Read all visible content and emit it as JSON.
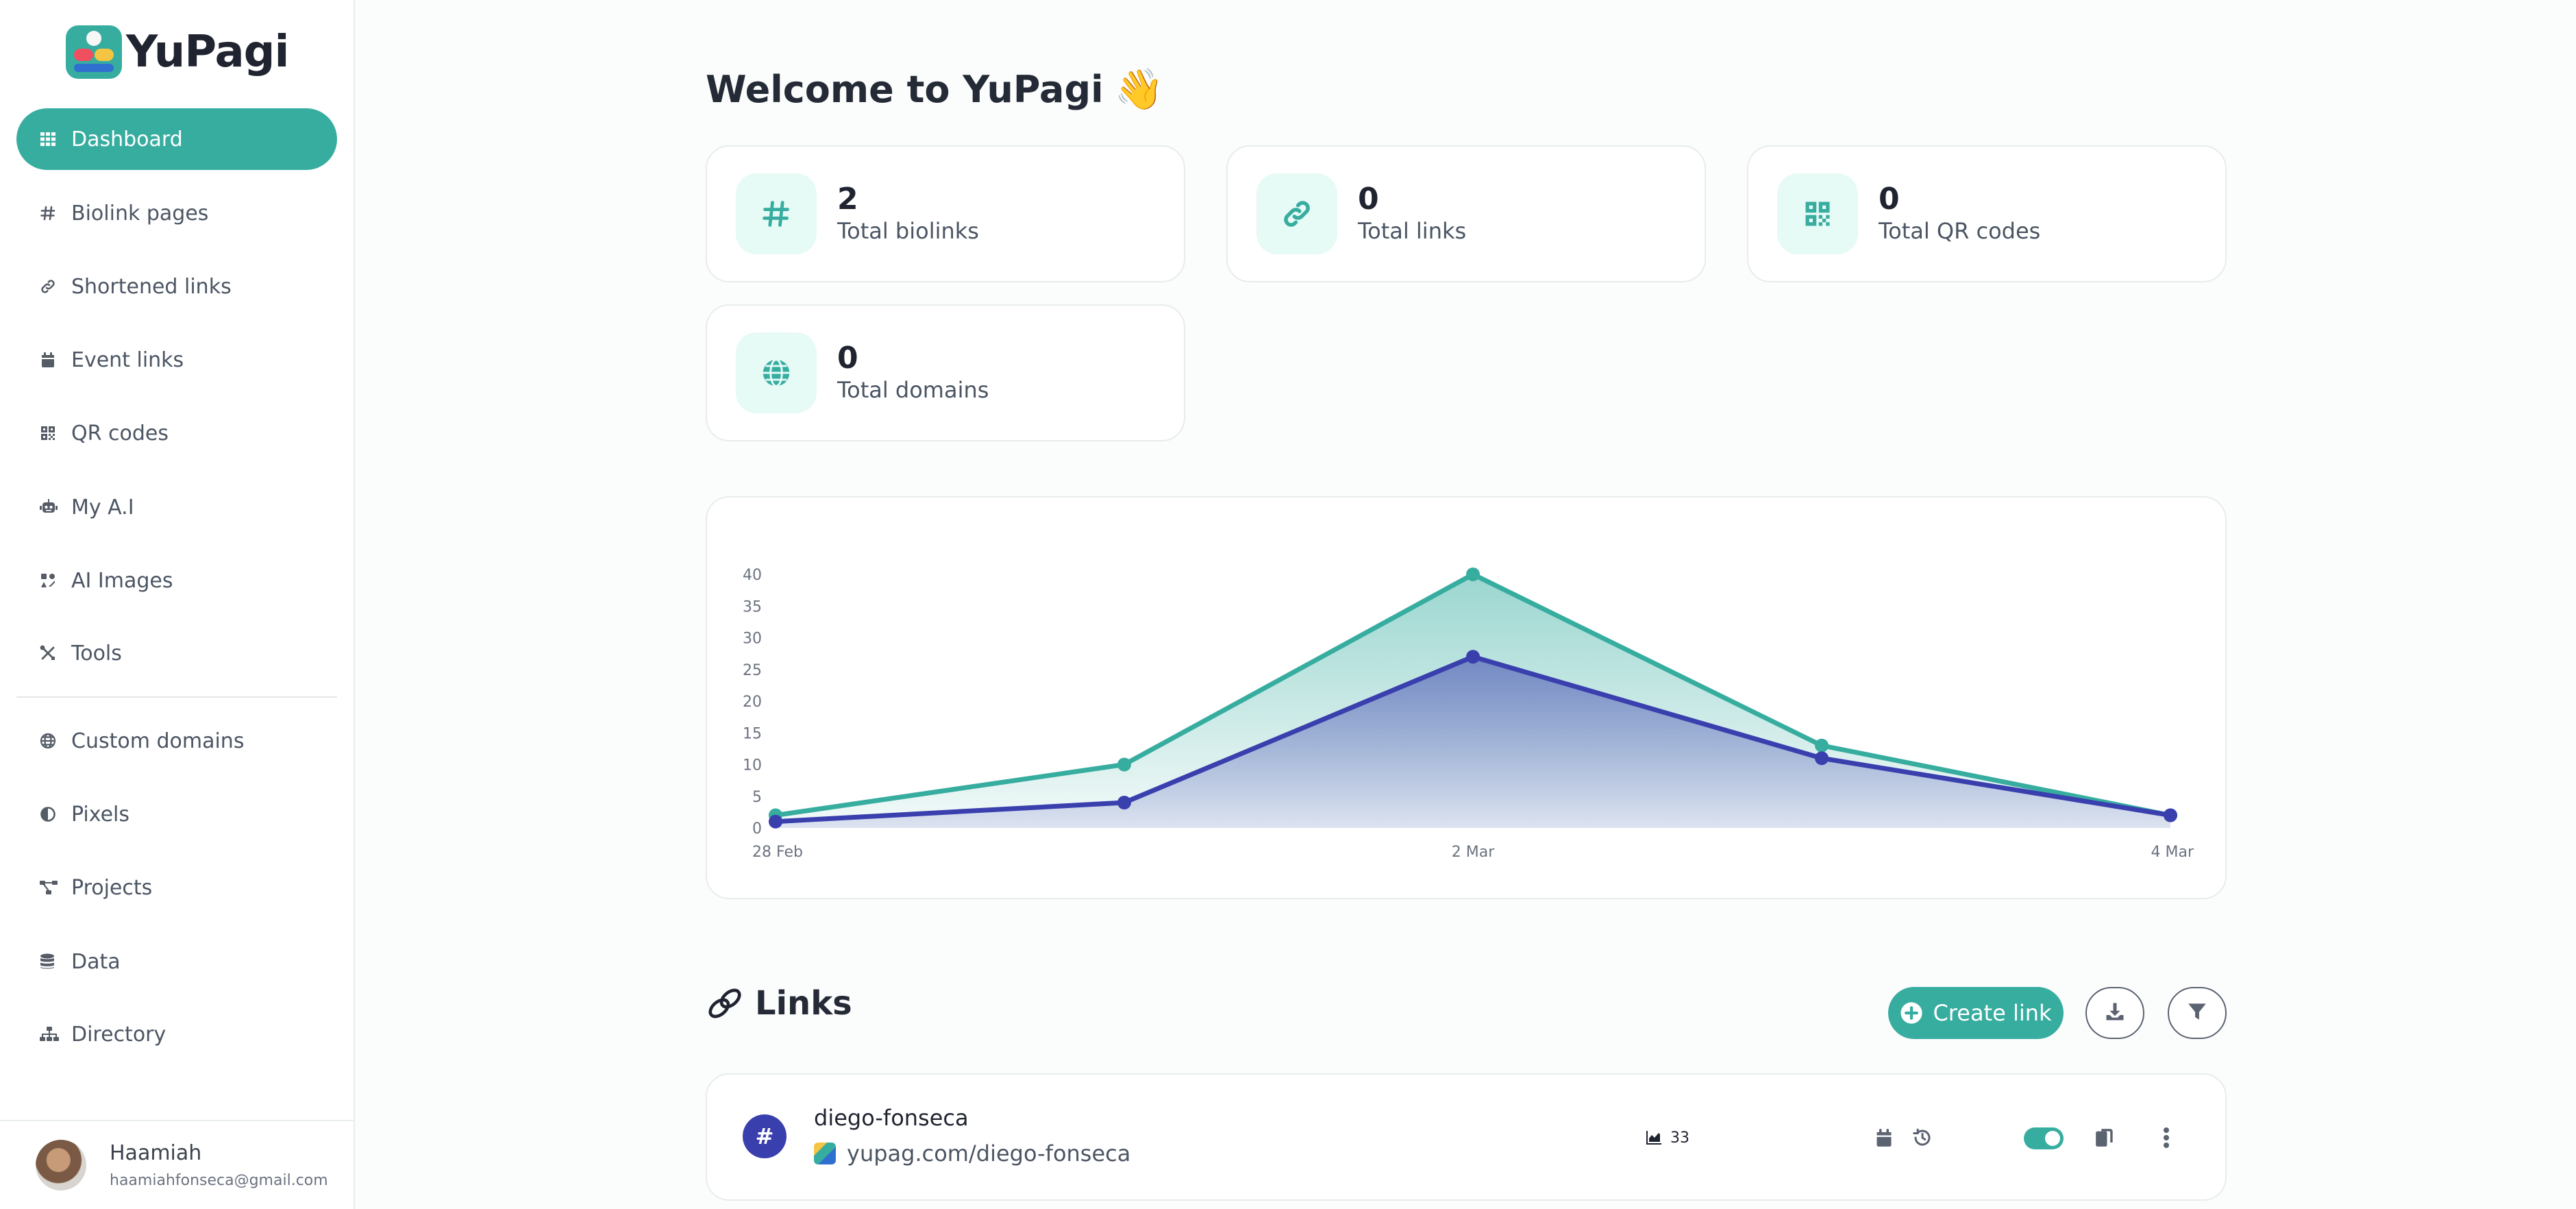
{
  "brand": {
    "name": "YuPagi"
  },
  "sidebar": {
    "items": [
      {
        "label": "Dashboard",
        "icon": "grid-icon",
        "active": true
      },
      {
        "label": "Biolink pages",
        "icon": "hash-icon"
      },
      {
        "label": "Shortened links",
        "icon": "link-icon"
      },
      {
        "label": "Event links",
        "icon": "calendar-icon"
      },
      {
        "label": "QR codes",
        "icon": "qrcode-icon"
      },
      {
        "label": "My A.I",
        "icon": "robot-icon"
      },
      {
        "label": "AI Images",
        "icon": "ai-images-icon"
      },
      {
        "label": "Tools",
        "icon": "tools-icon"
      },
      {
        "label": "Custom domains",
        "icon": "globe-icon"
      },
      {
        "label": "Pixels",
        "icon": "adjust-icon"
      },
      {
        "label": "Projects",
        "icon": "project-diagram-icon"
      },
      {
        "label": "Data",
        "icon": "database-icon"
      },
      {
        "label": "Directory",
        "icon": "sitemap-icon"
      }
    ]
  },
  "user": {
    "name": "Haamiah",
    "email": "haamiahfonseca@gmail.com"
  },
  "main": {
    "title": "Welcome to YuPagi",
    "title_emoji": "👋",
    "stats": [
      {
        "value": "2",
        "label": "Total biolinks",
        "icon": "hash-icon"
      },
      {
        "value": "0",
        "label": "Total links",
        "icon": "link-icon"
      },
      {
        "value": "0",
        "label": "Total QR codes",
        "icon": "qrcode-icon"
      },
      {
        "value": "0",
        "label": "Total domains",
        "icon": "globe-icon"
      }
    ]
  },
  "colors": {
    "accent": "#37ada0",
    "secondary": "#3a3fae"
  },
  "chart_data": {
    "type": "area",
    "x": [
      "28 Feb",
      "",
      "2 Mar",
      "",
      "4 Mar"
    ],
    "x_tick_labels": [
      "28 Feb",
      "2 Mar",
      "4 Mar"
    ],
    "y_ticks": [
      "0",
      "5",
      "10",
      "15",
      "20",
      "25",
      "30",
      "35",
      "40"
    ],
    "ylim": [
      0,
      40
    ],
    "grid": false,
    "series": [
      {
        "values": [
          2,
          10,
          40,
          13,
          2
        ],
        "color": "#37ada0"
      },
      {
        "values": [
          1,
          4,
          27,
          11,
          2
        ],
        "color": "#3a3fae"
      }
    ]
  },
  "links": {
    "title": "Links",
    "create_label": "Create link",
    "rows": [
      {
        "name": "diego-fonseca",
        "url": "yupag.com/diego-fonseca",
        "clicks": "33",
        "enabled": true
      }
    ]
  }
}
